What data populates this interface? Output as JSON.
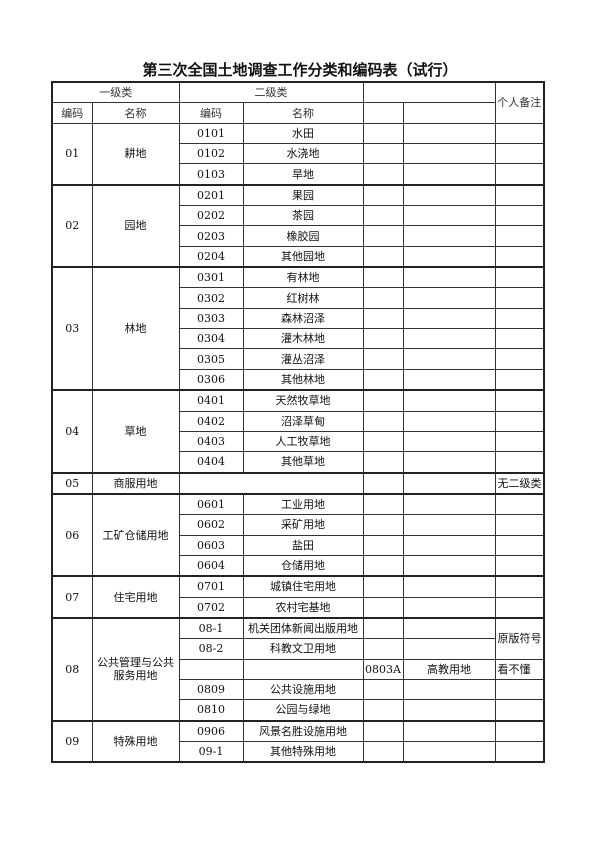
{
  "title": "第三次全国土地调查工作分类和编码表（试行）",
  "header": {
    "level1": "一级类",
    "level2": "二级类",
    "notes": "个人备注",
    "code": "编码",
    "name": "名称"
  },
  "groups": [
    {
      "code": "01",
      "name": "耕地",
      "items": [
        {
          "code": "0101",
          "name": "水田"
        },
        {
          "code": "0102",
          "name": "水浇地"
        },
        {
          "code": "0103",
          "name": "旱地"
        }
      ]
    },
    {
      "code": "02",
      "name": "园地",
      "items": [
        {
          "code": "0201",
          "name": "果园"
        },
        {
          "code": "0202",
          "name": "茶园"
        },
        {
          "code": "0203",
          "name": "橡胶园"
        },
        {
          "code": "0204",
          "name": "其他园地"
        }
      ]
    },
    {
      "code": "03",
      "name": "林地",
      "items": [
        {
          "code": "0301",
          "name": "有林地"
        },
        {
          "code": "0302",
          "name": "红树林"
        },
        {
          "code": "0303",
          "name": "森林沼泽"
        },
        {
          "code": "0304",
          "name": "灌木林地"
        },
        {
          "code": "0305",
          "name": "灌丛沼泽"
        },
        {
          "code": "0306",
          "name": "其他林地"
        }
      ]
    },
    {
      "code": "04",
      "name": "草地",
      "items": [
        {
          "code": "0401",
          "name": "天然牧草地"
        },
        {
          "code": "0402",
          "name": "沼泽草甸"
        },
        {
          "code": "0403",
          "name": "人工牧草地"
        },
        {
          "code": "0404",
          "name": "其他草地"
        }
      ]
    },
    {
      "code": "05",
      "name": "商服用地",
      "items": [
        {
          "merged": true,
          "note": "无二级类"
        }
      ]
    },
    {
      "code": "06",
      "name": "工矿仓储用地",
      "items": [
        {
          "code": "0601",
          "name": "工业用地"
        },
        {
          "code": "0602",
          "name": "采矿用地"
        },
        {
          "code": "0603",
          "name": "盐田"
        },
        {
          "code": "0604",
          "name": "仓储用地"
        }
      ]
    },
    {
      "code": "07",
      "name": "住宅用地",
      "items": [
        {
          "code": "0701",
          "name": "城镇住宅用地"
        },
        {
          "code": "0702",
          "name": "农村宅基地"
        }
      ]
    },
    {
      "code": "08",
      "name": "公共管理与公共服务用地",
      "items": [
        {
          "code": "08-1",
          "name": "机关团体新闻出版用地",
          "note": "原版符号",
          "noteSpan": 2
        },
        {
          "code": "08-2",
          "name": "科教文卫用地",
          "noteSkip": true
        },
        {
          "code": "",
          "name": "",
          "extraCode": "0803A",
          "extraName": "高教用地",
          "note": "看不懂"
        },
        {
          "code": "0809",
          "name": "公共设施用地"
        },
        {
          "code": "0810",
          "name": "公园与绿地"
        }
      ]
    },
    {
      "code": "09",
      "name": "特殊用地",
      "items": [
        {
          "code": "0906",
          "name": "风景名胜设施用地"
        },
        {
          "code": "09-1",
          "name": "其他特殊用地"
        }
      ]
    }
  ]
}
